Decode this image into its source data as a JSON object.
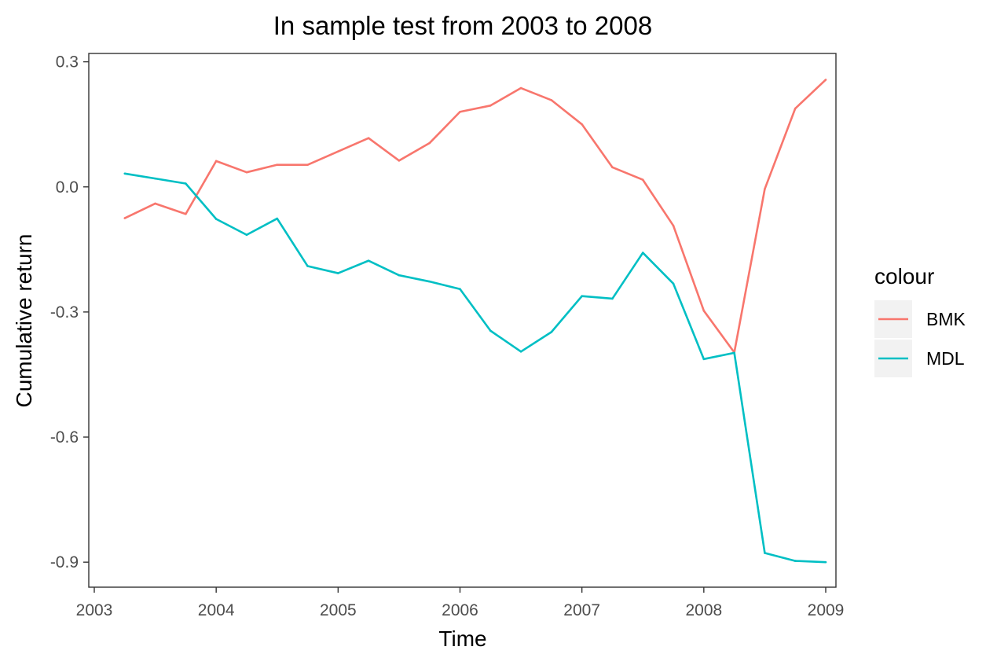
{
  "chart_data": {
    "type": "line",
    "title": "In sample test from 2003 to 2008",
    "xlabel": "Time",
    "ylabel": "Cumulative return",
    "xlim": [
      2003,
      2009
    ],
    "ylim": [
      -0.96,
      0.32
    ],
    "x_ticks": [
      2003,
      2004,
      2005,
      2006,
      2007,
      2008,
      2009
    ],
    "x_tick_labels": [
      "2003",
      "2004",
      "2005",
      "2006",
      "2007",
      "2008",
      "2009"
    ],
    "y_ticks": [
      0.3,
      0.0,
      -0.3,
      -0.6,
      -0.9
    ],
    "y_tick_labels": [
      "0.3",
      "0.0",
      "-0.3",
      "-0.6",
      "-0.9"
    ],
    "x": [
      2003.25,
      2003.5,
      2003.75,
      2004.0,
      2004.25,
      2004.5,
      2004.75,
      2005.0,
      2005.25,
      2005.5,
      2005.75,
      2006.0,
      2006.25,
      2006.5,
      2006.75,
      2007.0,
      2007.25,
      2007.5,
      2007.75,
      2008.0,
      2008.25,
      2008.5,
      2008.75,
      2009.0
    ],
    "series": [
      {
        "name": "BMK",
        "color": "#F8766D",
        "values": [
          -0.075,
          -0.04,
          -0.065,
          0.062,
          0.035,
          0.053,
          0.053,
          0.085,
          0.117,
          0.063,
          0.105,
          0.18,
          0.195,
          0.237,
          0.208,
          0.15,
          0.047,
          0.017,
          -0.093,
          -0.297,
          -0.397,
          -0.005,
          0.188,
          0.257
        ]
      },
      {
        "name": "MDL",
        "color": "#00BFC4",
        "values": [
          0.032,
          0.02,
          0.008,
          -0.077,
          -0.115,
          -0.076,
          -0.19,
          -0.207,
          -0.177,
          -0.212,
          -0.227,
          -0.245,
          -0.345,
          -0.395,
          -0.348,
          -0.262,
          -0.268,
          -0.158,
          -0.232,
          -0.413,
          -0.398,
          -0.878,
          -0.897,
          -0.9
        ]
      }
    ],
    "legend": {
      "title": "colour",
      "position": "right"
    },
    "grid": false
  }
}
